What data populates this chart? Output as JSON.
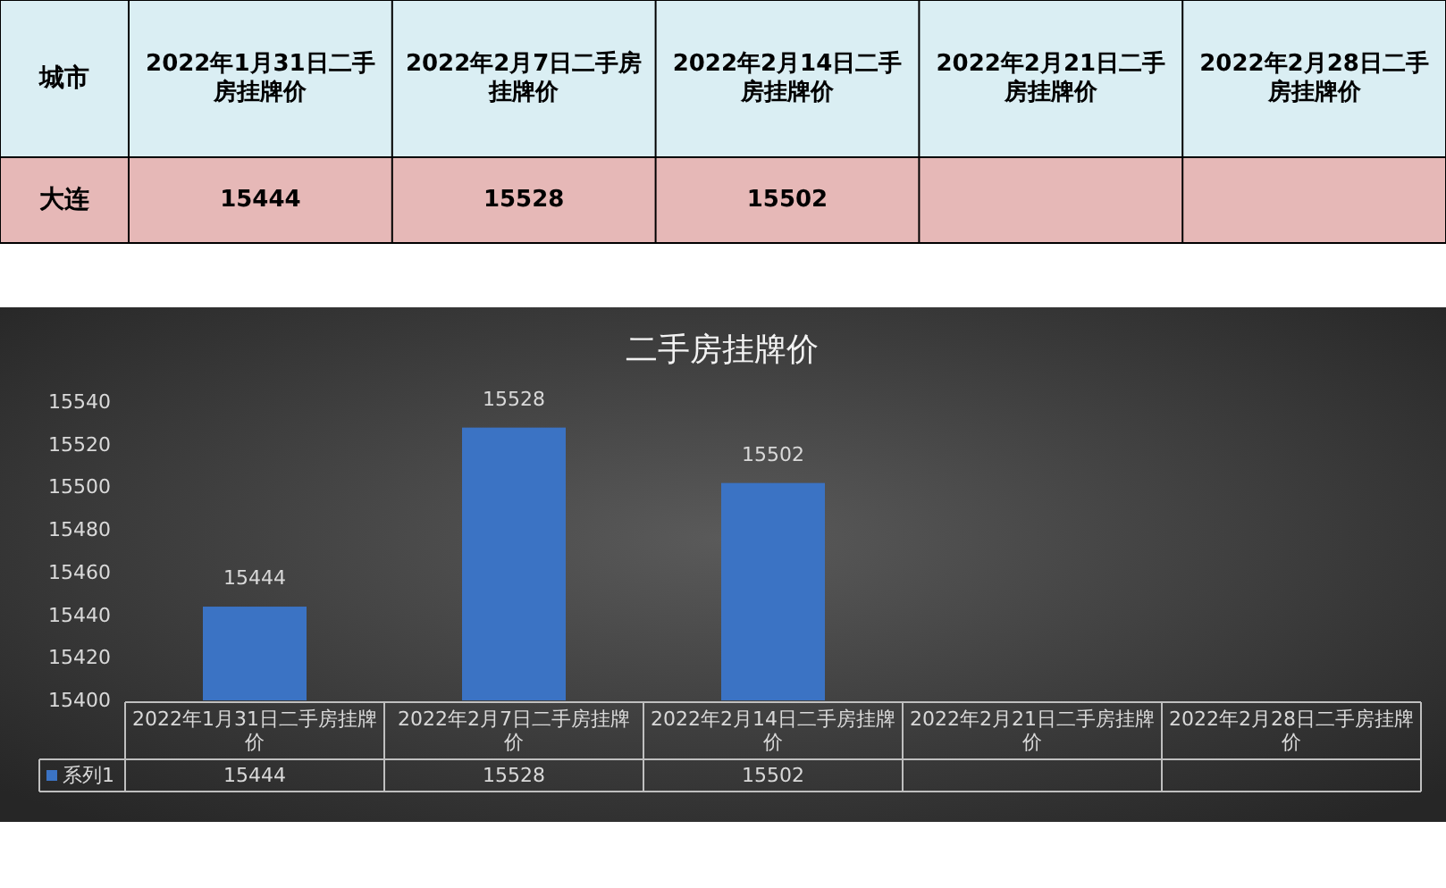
{
  "chart_data": {
    "type": "bar",
    "title": "二手房挂牌价",
    "categories": [
      "2022年1月31日二手房挂牌价",
      "2022年2月7日二手房挂牌价",
      "2022年2月14日二手房挂牌价",
      "2022年2月21日二手房挂牌价",
      "2022年2月28日二手房挂牌价"
    ],
    "series": [
      {
        "name": "系列1",
        "color": "#3b73c4",
        "values": [
          15444,
          15528,
          15502,
          null,
          null
        ],
        "value_labels": [
          "15444",
          "15528",
          "15502",
          null,
          null
        ]
      }
    ],
    "ylim": [
      15400,
      15540
    ],
    "yticks": [
      15400,
      15420,
      15440,
      15460,
      15480,
      15500,
      15520,
      15540
    ],
    "legend": "bottom",
    "annotations": [
      "城市",
      "大连"
    ]
  }
}
